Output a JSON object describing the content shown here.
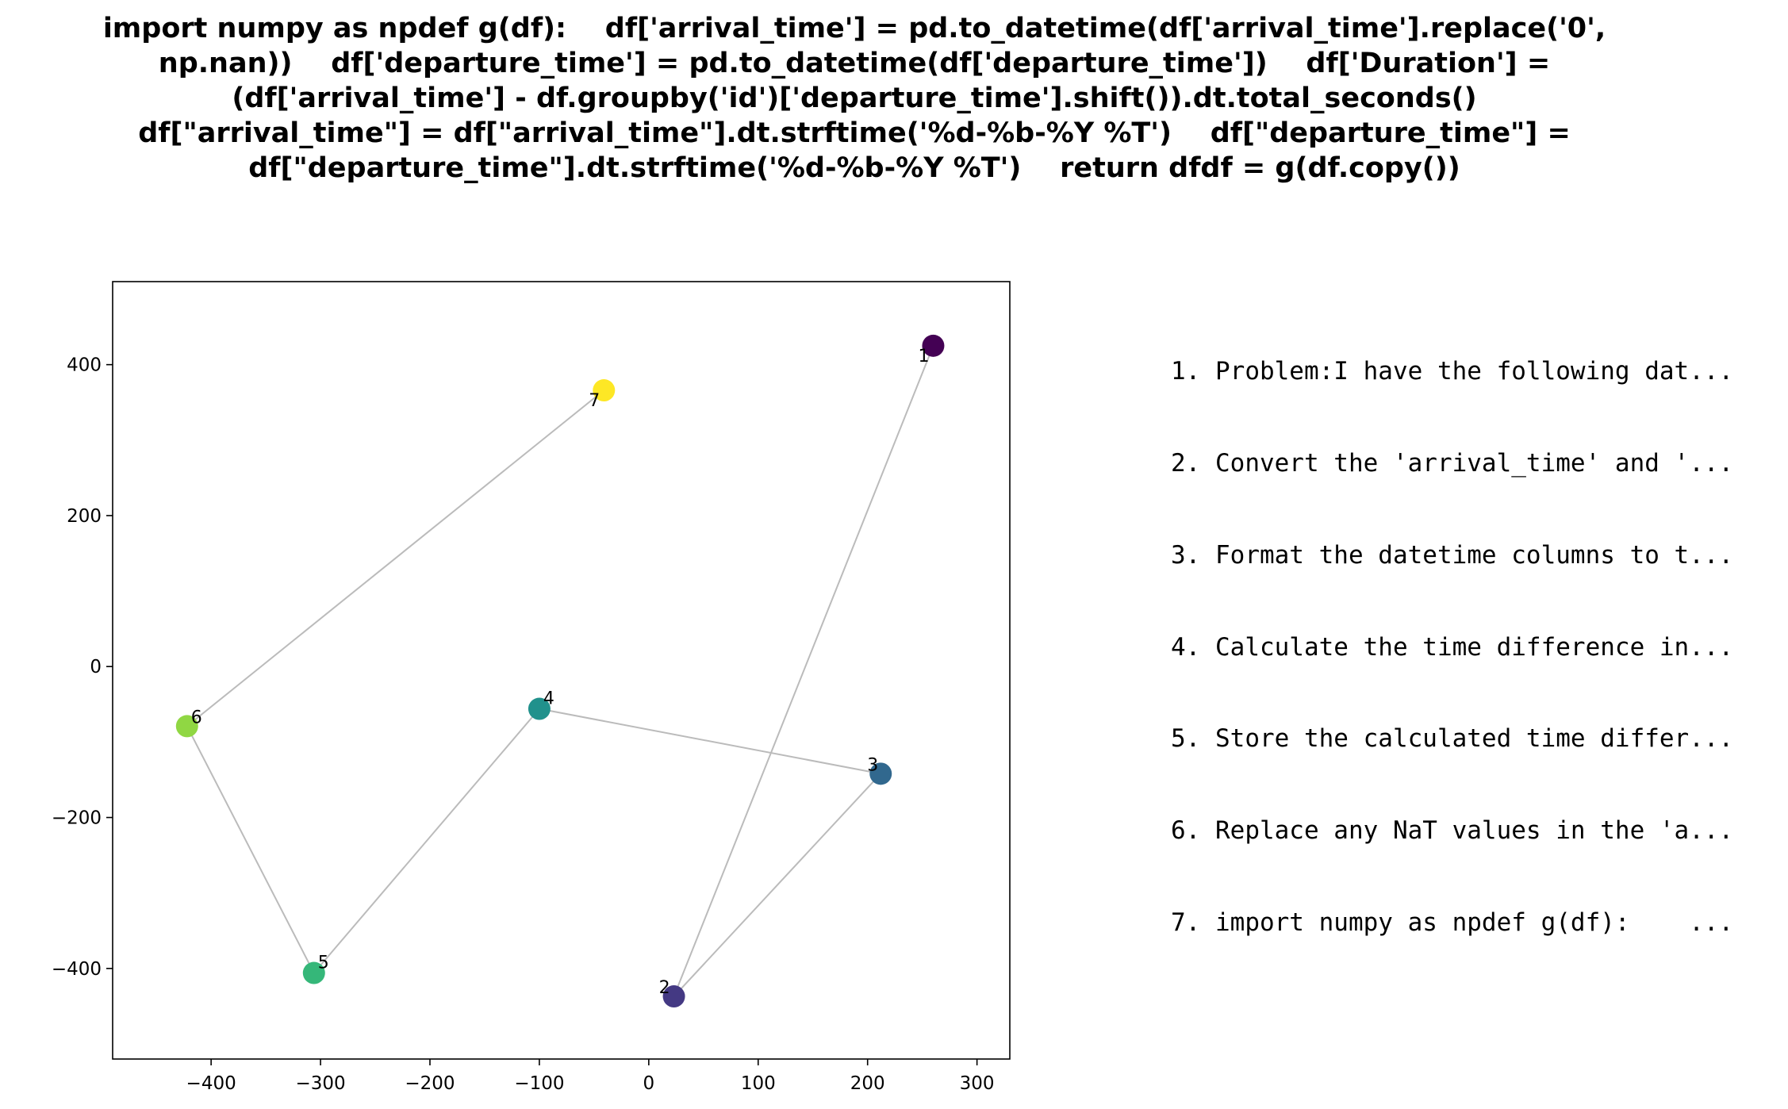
{
  "title_lines": [
    "import numpy as npdef g(df):    df['arrival_time'] = pd.to_datetime(df['arrival_time'].replace('0',",
    "np.nan))    df['departure_time'] = pd.to_datetime(df['departure_time'])    df['Duration'] =",
    "(df['arrival_time'] - df.groupby('id')['departure_time'].shift()).dt.total_seconds()",
    "df[\"arrival_time\"] = df[\"arrival_time\"].dt.strftime('%d-%b-%Y %T')    df[\"departure_time\"] =",
    "df[\"departure_time\"].dt.strftime('%d-%b-%Y %T')    return dfdf = g(df.copy())"
  ],
  "steps": [
    "1. Problem:I have the following dat...",
    "2. Convert the 'arrival_time' and '...",
    "3. Format the datetime columns to t...",
    "4. Calculate the time difference in...",
    "5. Store the calculated time differ...",
    "6. Replace any NaT values in the 'a...",
    "7. import numpy as npdef g(df):    ..."
  ],
  "chart_data": {
    "type": "scatter",
    "xlim": [
      -490,
      330
    ],
    "ylim": [
      -520,
      510
    ],
    "xticks": [
      -400,
      -300,
      -200,
      -100,
      0,
      100,
      200,
      300
    ],
    "yticks": [
      -400,
      -200,
      0,
      200,
      400
    ],
    "xtick_labels": [
      "−400",
      "−300",
      "−200",
      "−100",
      "0",
      "100",
      "200",
      "300"
    ],
    "ytick_labels": [
      "−400",
      "−200",
      "0",
      "200",
      "400"
    ],
    "grid": false,
    "points": [
      {
        "label": "1",
        "x": 260,
        "y": 425,
        "color": "#440154"
      },
      {
        "label": "2",
        "x": 23,
        "y": -437,
        "color": "#443983"
      },
      {
        "label": "3",
        "x": 212,
        "y": -142,
        "color": "#31688e"
      },
      {
        "label": "4",
        "x": -100,
        "y": -56,
        "color": "#21918c"
      },
      {
        "label": "5",
        "x": -306,
        "y": -406,
        "color": "#35b779"
      },
      {
        "label": "6",
        "x": -422,
        "y": -79,
        "color": "#90d743"
      },
      {
        "label": "7",
        "x": -41,
        "y": 366,
        "color": "#fde725"
      }
    ],
    "path_order": [
      "1",
      "2",
      "3",
      "4",
      "5",
      "6",
      "7"
    ],
    "line_color": "#bbbbbb"
  }
}
